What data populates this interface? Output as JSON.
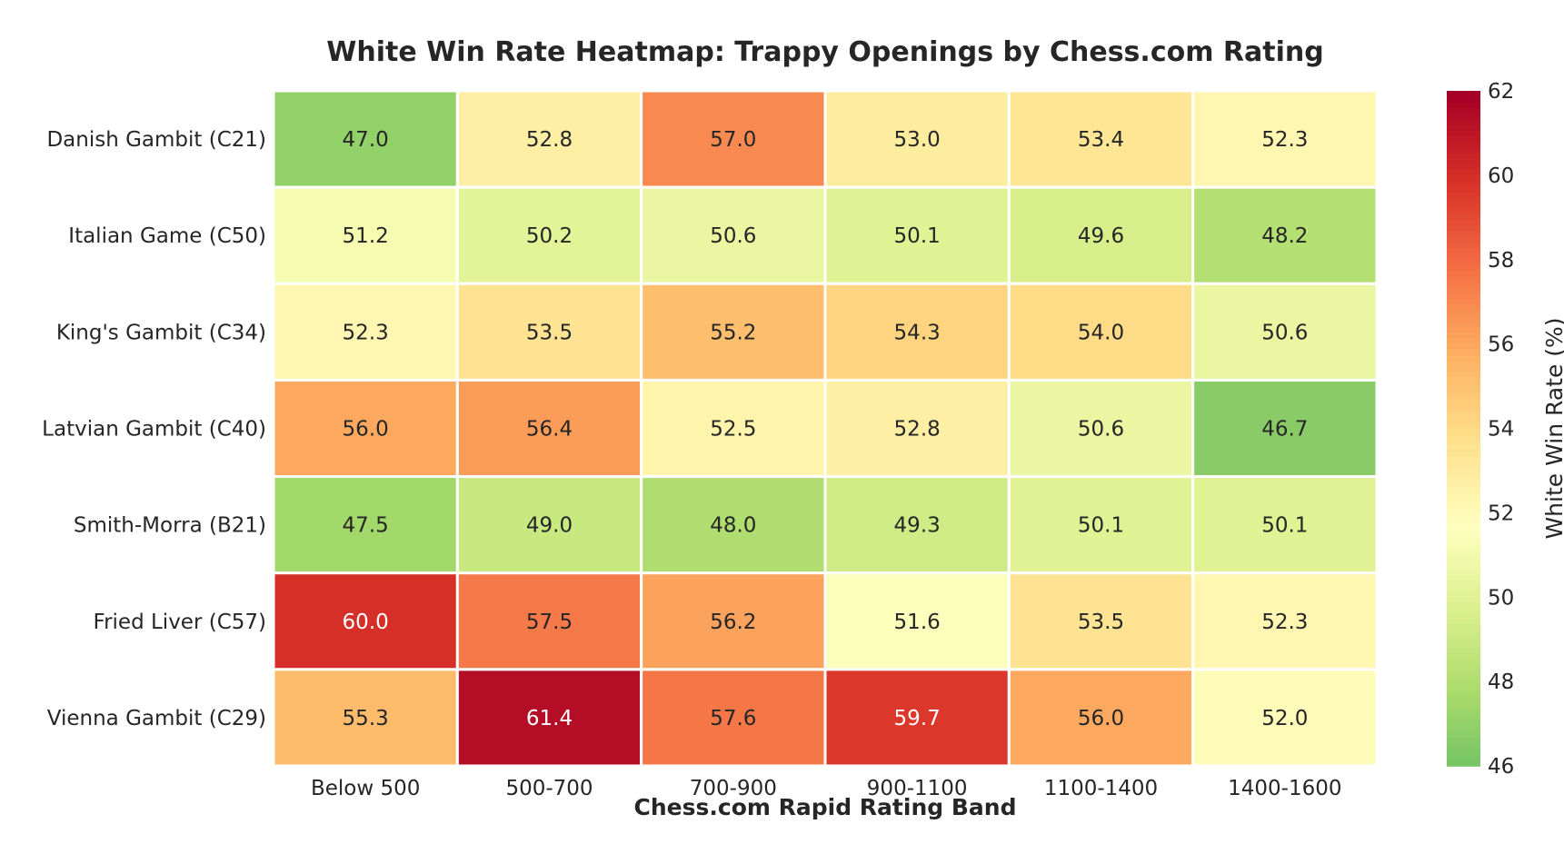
{
  "chart_data": {
    "type": "heatmap",
    "title": "White Win Rate Heatmap: Trappy Openings by Chess.com Rating",
    "xlabel": "Chess.com Rapid Rating Band",
    "ylabel": "",
    "colorbar_label": "White Win Rate (%)",
    "colormap": "RdYlGn_r",
    "vmin": 46,
    "vmax": 62,
    "colorbar_ticks": [
      46,
      48,
      50,
      52,
      54,
      56,
      58,
      60,
      62
    ],
    "columns": [
      "Below 500",
      "500-700",
      "700-900",
      "900-1100",
      "1100-1400",
      "1400-1600"
    ],
    "rows": [
      "Danish Gambit (C21)",
      "Italian Game (C50)",
      "King's Gambit (C34)",
      "Latvian Gambit (C40)",
      "Smith-Morra (B21)",
      "Fried Liver (C57)",
      "Vienna Gambit (C29)"
    ],
    "values": [
      [
        47.0,
        52.8,
        57.0,
        53.0,
        53.4,
        52.3
      ],
      [
        51.2,
        50.2,
        50.6,
        50.1,
        49.6,
        48.2
      ],
      [
        52.3,
        53.5,
        55.2,
        54.3,
        54.0,
        50.6
      ],
      [
        56.0,
        56.4,
        52.5,
        52.8,
        50.6,
        46.7
      ],
      [
        47.5,
        49.0,
        48.0,
        49.3,
        50.1,
        50.1
      ],
      [
        60.0,
        57.5,
        56.2,
        51.6,
        53.5,
        52.3
      ],
      [
        55.3,
        61.4,
        57.6,
        59.7,
        56.0,
        52.0
      ]
    ],
    "value_format": "0.0",
    "grid": false,
    "legend": "colorbar-right"
  }
}
